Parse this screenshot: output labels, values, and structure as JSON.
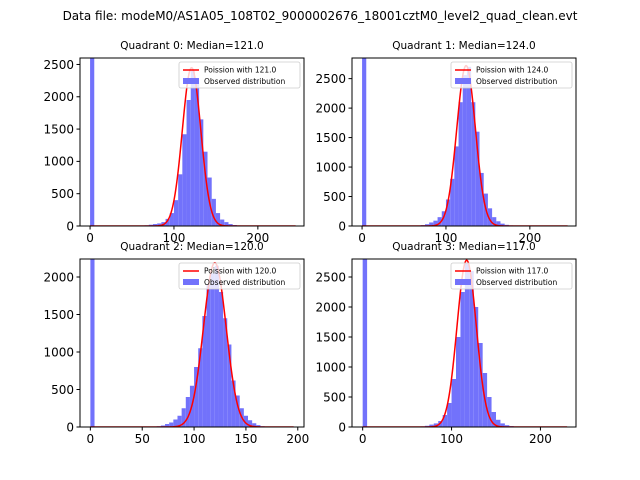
{
  "suptitle": "Data file: modeM0/AS1A05_108T02_9000002676_18001cztM0_level2_quad_clean.evt",
  "colors": {
    "hist": "#7272fb",
    "fit": "#ff0000",
    "axes": "#000000"
  },
  "chart_data": [
    {
      "type": "bar",
      "title": "Quadrant 0: Median=121.0",
      "xlim": [
        -12,
        255
      ],
      "ylim": [
        0,
        2600
      ],
      "xticks": [
        0,
        100,
        200
      ],
      "yticks": [
        0,
        500,
        1000,
        1500,
        2000,
        2500
      ],
      "legend": {
        "placement": "top-right",
        "line": "Poission with 121.0",
        "patch": "Observed distribution"
      },
      "poisson_mean": 121.0,
      "poisson_peak": 2450,
      "fit_x_range": [
        0,
        245
      ],
      "bin_width": 5,
      "bins": [
        [
          0,
          2600
        ],
        [
          60,
          5
        ],
        [
          65,
          10
        ],
        [
          70,
          20
        ],
        [
          75,
          30
        ],
        [
          80,
          40
        ],
        [
          85,
          60
        ],
        [
          90,
          110
        ],
        [
          95,
          200
        ],
        [
          100,
          400
        ],
        [
          105,
          800
        ],
        [
          110,
          1420
        ],
        [
          115,
          1950
        ],
        [
          120,
          2400
        ],
        [
          125,
          2220
        ],
        [
          130,
          1650
        ],
        [
          135,
          1150
        ],
        [
          140,
          750
        ],
        [
          145,
          420
        ],
        [
          150,
          200
        ],
        [
          155,
          100
        ],
        [
          160,
          60
        ],
        [
          165,
          30
        ],
        [
          170,
          15
        ],
        [
          175,
          8
        ]
      ]
    },
    {
      "type": "bar",
      "title": "Quadrant 1: Median=124.0",
      "xlim": [
        -12,
        255
      ],
      "ylim": [
        0,
        2850
      ],
      "xticks": [
        0,
        100,
        200
      ],
      "yticks": [
        0,
        500,
        1000,
        1500,
        2000,
        2500
      ],
      "legend": {
        "placement": "top-right",
        "line": "Poission with 124.0",
        "patch": "Observed distribution"
      },
      "poisson_mean": 124.0,
      "poisson_peak": 2720,
      "fit_x_range": [
        0,
        245
      ],
      "bin_width": 5,
      "bins": [
        [
          0,
          2900
        ],
        [
          65,
          5
        ],
        [
          70,
          15
        ],
        [
          75,
          30
        ],
        [
          80,
          60
        ],
        [
          85,
          90
        ],
        [
          90,
          150
        ],
        [
          95,
          250
        ],
        [
          100,
          450
        ],
        [
          105,
          800
        ],
        [
          110,
          1350
        ],
        [
          115,
          2100
        ],
        [
          120,
          2560
        ],
        [
          125,
          2700
        ],
        [
          130,
          2100
        ],
        [
          135,
          1600
        ],
        [
          140,
          900
        ],
        [
          145,
          550
        ],
        [
          150,
          300
        ],
        [
          155,
          150
        ],
        [
          160,
          80
        ],
        [
          165,
          40
        ],
        [
          170,
          20
        ],
        [
          175,
          10
        ]
      ]
    },
    {
      "type": "bar",
      "title": "Quadrant 2: Median=120.0",
      "xlim": [
        -10,
        206
      ],
      "ylim": [
        0,
        2240
      ],
      "xticks": [
        0,
        50,
        100,
        150,
        200
      ],
      "yticks": [
        0,
        500,
        1000,
        1500,
        2000
      ],
      "legend": {
        "placement": "top-right",
        "line": "Poission with 120.0",
        "patch": "Observed distribution"
      },
      "poisson_mean": 120.0,
      "poisson_peak": 2190,
      "fit_x_range": [
        0,
        196
      ],
      "bin_width": 4,
      "bins": [
        [
          0,
          2250
        ],
        [
          60,
          5
        ],
        [
          64,
          10
        ],
        [
          68,
          20
        ],
        [
          72,
          40
        ],
        [
          76,
          60
        ],
        [
          80,
          100
        ],
        [
          84,
          150
        ],
        [
          88,
          250
        ],
        [
          92,
          400
        ],
        [
          96,
          550
        ],
        [
          100,
          800
        ],
        [
          104,
          1050
        ],
        [
          108,
          1480
        ],
        [
          112,
          1900
        ],
        [
          116,
          2050
        ],
        [
          120,
          2150
        ],
        [
          124,
          1800
        ],
        [
          128,
          1450
        ],
        [
          132,
          1100
        ],
        [
          136,
          620
        ],
        [
          140,
          420
        ],
        [
          144,
          250
        ],
        [
          148,
          150
        ],
        [
          152,
          90
        ],
        [
          156,
          50
        ],
        [
          160,
          25
        ],
        [
          164,
          10
        ],
        [
          168,
          5
        ]
      ]
    },
    {
      "type": "bar",
      "title": "Quadrant 3: Median=117.0",
      "xlim": [
        -12,
        240
      ],
      "ylim": [
        0,
        2800
      ],
      "xticks": [
        0,
        100,
        200
      ],
      "yticks": [
        0,
        500,
        1000,
        1500,
        2000,
        2500
      ],
      "legend": {
        "placement": "top-right",
        "line": "Poission with 117.0",
        "patch": "Observed distribution"
      },
      "poisson_mean": 117.0,
      "poisson_peak": 2780,
      "fit_x_range": [
        0,
        230
      ],
      "bin_width": 5,
      "bins": [
        [
          0,
          2800
        ],
        [
          65,
          10
        ],
        [
          70,
          20
        ],
        [
          75,
          40
        ],
        [
          80,
          60
        ],
        [
          85,
          100
        ],
        [
          90,
          200
        ],
        [
          95,
          400
        ],
        [
          100,
          800
        ],
        [
          105,
          1500
        ],
        [
          110,
          2250
        ],
        [
          115,
          2730
        ],
        [
          120,
          2600
        ],
        [
          125,
          2000
        ],
        [
          130,
          1400
        ],
        [
          135,
          900
        ],
        [
          140,
          500
        ],
        [
          145,
          250
        ],
        [
          150,
          120
        ],
        [
          155,
          60
        ],
        [
          160,
          30
        ],
        [
          165,
          15
        ]
      ]
    }
  ]
}
